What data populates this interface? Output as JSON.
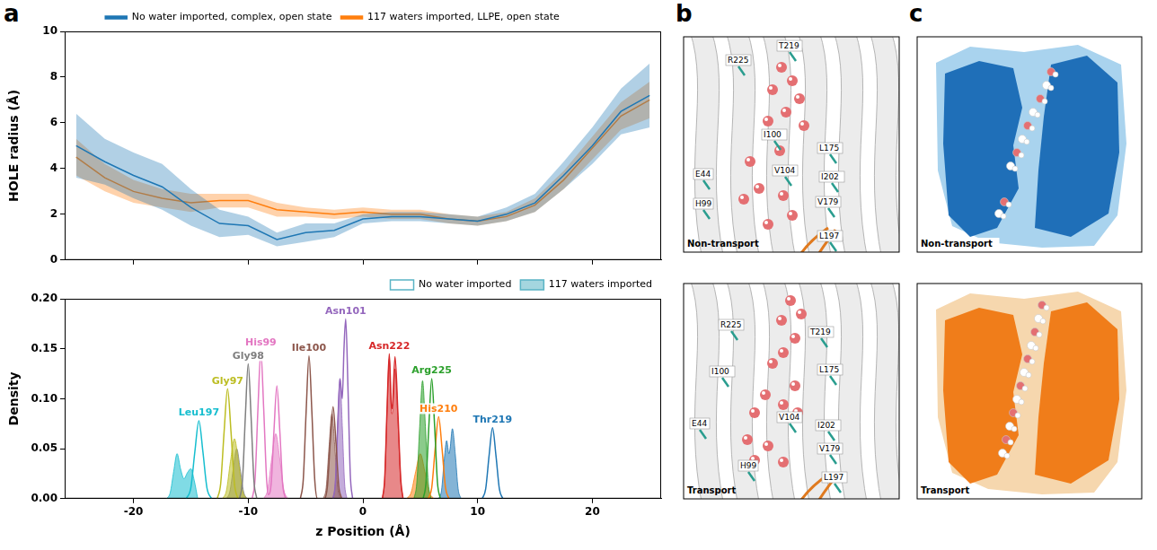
{
  "chart_data": [
    {
      "type": "line",
      "y_label": "HOLE radius (Å)",
      "x": [
        -25,
        -22.5,
        -20,
        -17.5,
        -15,
        -12.5,
        -10,
        -7.5,
        -5,
        -2.5,
        0,
        2.5,
        5,
        7.5,
        10,
        12.5,
        15,
        17.5,
        20,
        22.5,
        25
      ],
      "series": [
        {
          "name": "No water imported, complex, open state",
          "color": "#1f77b4",
          "values": [
            5.0,
            4.3,
            3.7,
            3.2,
            2.3,
            1.6,
            1.5,
            0.9,
            1.2,
            1.3,
            1.8,
            1.9,
            1.9,
            1.8,
            1.7,
            2.0,
            2.5,
            3.7,
            5.0,
            6.5,
            7.2
          ],
          "error": [
            1.4,
            1.0,
            1.0,
            1.0,
            0.8,
            0.6,
            0.4,
            0.3,
            0.4,
            0.3,
            0.2,
            0.2,
            0.2,
            0.2,
            0.2,
            0.3,
            0.4,
            0.6,
            0.8,
            1.0,
            1.4
          ]
        },
        {
          "name": "117 waters imported, LLPE, open state",
          "color": "#ff7f0e",
          "values": [
            4.5,
            3.6,
            3.0,
            2.7,
            2.5,
            2.6,
            2.6,
            2.2,
            2.1,
            2.0,
            2.1,
            2.0,
            2.0,
            1.8,
            1.7,
            1.9,
            2.4,
            3.5,
            4.9,
            6.3,
            7.0
          ],
          "error": [
            0.8,
            0.6,
            0.5,
            0.4,
            0.4,
            0.3,
            0.3,
            0.3,
            0.2,
            0.2,
            0.2,
            0.2,
            0.2,
            0.2,
            0.2,
            0.2,
            0.3,
            0.4,
            0.5,
            0.6,
            0.8
          ]
        }
      ],
      "xlim": [
        -26,
        26
      ],
      "xticks": [
        -20,
        -10,
        0,
        10,
        20
      ],
      "ylim": [
        0,
        10
      ],
      "yticks": [
        0,
        2,
        4,
        6,
        8,
        10
      ],
      "grid": false,
      "legend": "top",
      "tick_labels": "y"
    },
    {
      "type": "area",
      "x_label": "z Position (Å)",
      "y_label": "Density",
      "groups": [
        {
          "name": "No water imported",
          "fill": false,
          "color": "#5ab4c5"
        },
        {
          "name": "117 waters imported",
          "fill": true,
          "color": "#5ab4c5"
        }
      ],
      "series": [
        {
          "name": "Leu197",
          "color": "#17becf",
          "curves": [
            {
              "x": [
                -15.4,
                -15.0,
                -14.65,
                -14.3,
                -13.95,
                -13.6,
                -13.2
              ],
              "values": [
                0,
                0.011,
                0.047,
                0.078,
                0.047,
                0.011,
                0
              ]
            },
            {
              "x": [
                -17.1,
                -16.8,
                -16.5,
                -16.2,
                -15.9,
                -15.6,
                -15.3,
                -15.0,
                -14.7,
                -14.4
              ],
              "values": [
                0,
                0.006,
                0.027,
                0.045,
                0.03,
                0.02,
                0.026,
                0.03,
                0.018,
                0
              ]
            }
          ]
        },
        {
          "name": "Gly97",
          "color": "#bcbd22",
          "curves": [
            {
              "x": [
                -12.7,
                -12.4,
                -12.1,
                -11.8,
                -11.5,
                -11.2,
                -10.9
              ],
              "values": [
                0,
                0.015,
                0.067,
                0.11,
                0.067,
                0.015,
                0
              ]
            },
            {
              "x": [
                -12.25,
                -11.9,
                -11.55,
                -11.2,
                -10.85,
                -10.5,
                -10.15
              ],
              "values": [
                0,
                0.008,
                0.037,
                0.06,
                0.037,
                0.008,
                0
              ]
            }
          ]
        },
        {
          "name": "Gly98",
          "color": "#7f7f7f",
          "curves": [
            {
              "x": [
                -10.75,
                -10.5,
                -10.25,
                -10.0,
                -9.75,
                -9.5,
                -9.25
              ],
              "values": [
                0,
                0.018,
                0.082,
                0.135,
                0.082,
                0.018,
                0
              ]
            },
            {
              "x": [
                -11.9,
                -11.6,
                -11.3,
                -11.0,
                -10.7,
                -10.4,
                -10.1
              ],
              "values": [
                0,
                0.007,
                0.03,
                0.05,
                0.03,
                0.007,
                0
              ]
            }
          ]
        },
        {
          "name": "His99",
          "color": "#e377c2",
          "curves": [
            {
              "x": [
                -9.65,
                -9.4,
                -9.15,
                -8.9,
                -8.65,
                -8.4,
                -8.25,
                -8.0,
                -7.75,
                -7.5,
                -7.25,
                -7.0,
                -6.75
              ],
              "values": [
                0,
                0.02,
                0.09,
                0.148,
                0.09,
                0.02,
                0.004,
                0.015,
                0.069,
                0.113,
                0.069,
                0.015,
                0
              ]
            },
            {
              "x": [
                -8.65,
                -8.3,
                -7.95,
                -7.6,
                -7.25,
                -6.9,
                -6.55
              ],
              "values": [
                0,
                0.009,
                0.04,
                0.065,
                0.04,
                0.009,
                0
              ]
            }
          ]
        },
        {
          "name": "Ile100",
          "color": "#8c564b",
          "curves": [
            {
              "x": [
                -5.45,
                -5.2,
                -4.95,
                -4.7,
                -4.45,
                -4.2,
                -3.95,
                -3.35,
                -3.1,
                -2.85,
                -2.6,
                -2.35,
                -2.1,
                -1.85
              ],
              "values": [
                0,
                0.019,
                0.087,
                0.143,
                0.087,
                0.019,
                0,
                0,
                0.012,
                0.056,
                0.092,
                0.056,
                0.012,
                0
              ]
            },
            {
              "x": [
                -3.45,
                -3.2,
                -2.95,
                -2.7,
                -2.45,
                -2.2,
                -1.95
              ],
              "values": [
                0,
                0.011,
                0.052,
                0.085,
                0.052,
                0.011,
                0
              ]
            }
          ]
        },
        {
          "name": "Asn101",
          "color": "#9467bd",
          "curves": [
            {
              "x": [
                -2.6,
                -2.4,
                -2.2,
                -2.0,
                -1.8,
                -1.65,
                -1.5,
                -1.3,
                -1.1,
                -0.9
              ],
              "values": [
                0,
                0.016,
                0.073,
                0.12,
                0.1,
                0.15,
                0.18,
                0.11,
                0.024,
                0
              ]
            },
            {
              "x": [
                -2.6,
                -2.4,
                -2.2,
                -2.0,
                -1.8,
                -1.6,
                -1.4
              ],
              "values": [
                0,
                0.016,
                0.073,
                0.12,
                0.073,
                0.016,
                0
              ]
            }
          ]
        },
        {
          "name": "Asn222",
          "color": "#d62728",
          "curves": [
            {
              "x": [
                1.7,
                1.9,
                2.1,
                2.3,
                2.5,
                2.55,
                2.8,
                3.05,
                3.3,
                3.5
              ],
              "values": [
                0,
                0.02,
                0.088,
                0.145,
                0.09,
                0.09,
                0.142,
                0.086,
                0.019,
                0
              ]
            },
            {
              "x": [
                1.7,
                1.9,
                2.1,
                2.3,
                2.5,
                2.55,
                2.8,
                3.05,
                3.3,
                3.5
              ],
              "values": [
                0,
                0.019,
                0.085,
                0.14,
                0.085,
                0.085,
                0.13,
                0.079,
                0.018,
                0
              ]
            }
          ]
        },
        {
          "name": "Arg225",
          "color": "#2ca02c",
          "curves": [
            {
              "x": [
                5.25,
                5.5,
                5.75,
                6.0,
                6.25,
                6.5,
                6.75
              ],
              "values": [
                0,
                0.016,
                0.073,
                0.12,
                0.073,
                0.016,
                0
              ]
            },
            {
              "x": [
                4.45,
                4.7,
                4.95,
                5.2,
                5.45,
                5.7,
                5.95
              ],
              "values": [
                0,
                0.016,
                0.072,
                0.118,
                0.072,
                0.016,
                0
              ]
            }
          ]
        },
        {
          "name": "His210",
          "color": "#ff7f0e",
          "curves": [
            {
              "x": [
                5.7,
                6.0,
                6.3,
                6.6,
                6.9,
                7.2,
                7.5
              ],
              "values": [
                0,
                0.011,
                0.05,
                0.082,
                0.05,
                0.011,
                0
              ]
            },
            {
              "x": [
                3.8,
                4.2,
                4.6,
                5.0,
                5.4,
                5.8,
                6.2
              ],
              "values": [
                0,
                0.006,
                0.027,
                0.045,
                0.027,
                0.006,
                0
              ]
            }
          ]
        },
        {
          "name": "Thr219",
          "color": "#1f77b4",
          "curves": [
            {
              "x": [
                10.4,
                10.7,
                11.0,
                11.3,
                11.6,
                11.9,
                12.2
              ],
              "values": [
                0,
                0.0095,
                0.043,
                0.071,
                0.043,
                0.0095,
                0
              ]
            },
            {
              "x": [
                6.6,
                6.85,
                7.1,
                7.3,
                7.5,
                7.6,
                7.8,
                8.05,
                8.3,
                8.55
              ],
              "values": [
                0,
                0.008,
                0.04,
                0.058,
                0.045,
                0.05,
                0.07,
                0.045,
                0.01,
                0
              ]
            }
          ]
        }
      ],
      "xlim": [
        -26,
        26
      ],
      "xticks": [
        -20,
        -10,
        0,
        10,
        20
      ],
      "ylim": [
        0,
        0.2
      ],
      "yticks": [
        {
          "value": 0,
          "label": "0.00"
        },
        {
          "value": 0.05,
          "label": "0.05"
        },
        {
          "value": 0.1,
          "label": "0.10"
        },
        {
          "value": 0.15,
          "label": "0.15"
        },
        {
          "value": 0.2,
          "label": "0.20"
        }
      ],
      "grid": false,
      "legend": "top right"
    }
  ],
  "panels": [
    {
      "letter": "a"
    },
    {
      "letter": "b",
      "images": [
        {
          "caption": "Non-transport",
          "labels": [
            "R225",
            "T219",
            "I100",
            "L175",
            "E44",
            "V104",
            "I202",
            "H99",
            "V179",
            "L197"
          ]
        },
        {
          "caption": "Transport",
          "labels": [
            "R225",
            "T219",
            "I100",
            "L175",
            "E44",
            "V104",
            "I202",
            "H99",
            "V179",
            "L197"
          ]
        }
      ]
    },
    {
      "letter": "c",
      "images": [
        {
          "caption": "Non-transport"
        },
        {
          "caption": "Transport"
        }
      ]
    }
  ]
}
